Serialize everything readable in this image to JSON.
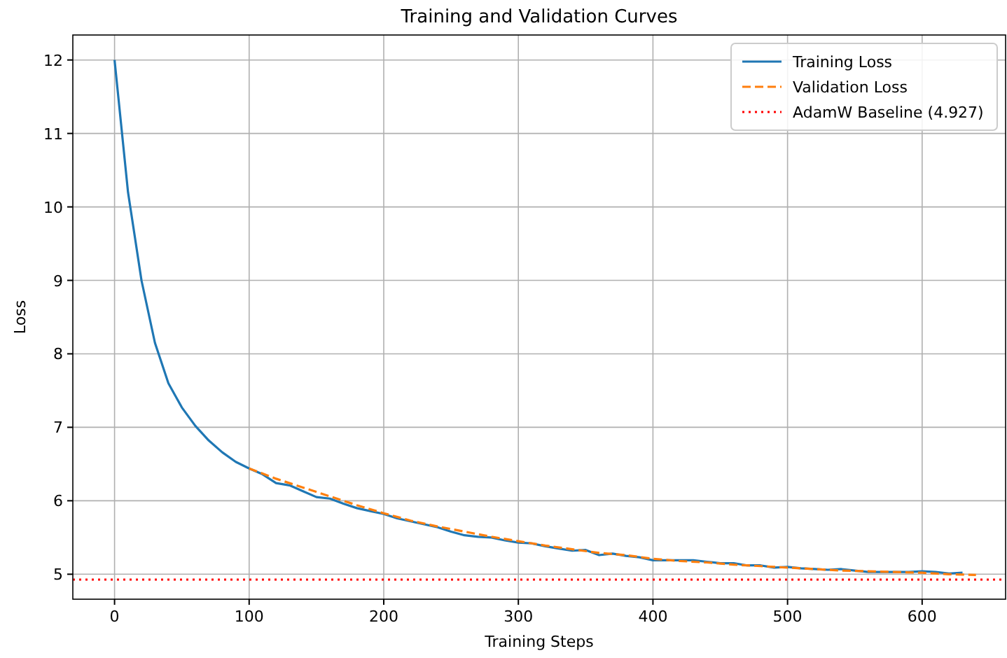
{
  "chart_data": {
    "type": "line",
    "title": "Training and Validation Curves",
    "xlabel": "Training Steps",
    "ylabel": "Loss",
    "xlim": [
      -31,
      662
    ],
    "ylim": [
      4.66,
      12.34
    ],
    "xticks": [
      0,
      100,
      200,
      300,
      400,
      500,
      600
    ],
    "yticks": [
      5,
      6,
      7,
      8,
      9,
      10,
      11,
      12
    ],
    "grid": true,
    "legend": "top right",
    "series": [
      {
        "name": "Training Loss",
        "color": "#1f77b4",
        "line_style": "solid",
        "x": [
          0,
          10,
          20,
          30,
          40,
          50,
          60,
          70,
          80,
          90,
          100,
          110,
          120,
          130,
          140,
          150,
          160,
          170,
          180,
          190,
          200,
          210,
          220,
          230,
          240,
          250,
          260,
          270,
          280,
          290,
          300,
          310,
          320,
          330,
          340,
          350,
          360,
          370,
          380,
          390,
          400,
          410,
          420,
          430,
          440,
          450,
          460,
          470,
          480,
          490,
          500,
          510,
          520,
          530,
          540,
          550,
          560,
          570,
          580,
          590,
          600,
          610,
          620,
          630
        ],
        "values": [
          12.0,
          10.2,
          9.0,
          8.15,
          7.6,
          7.27,
          7.02,
          6.82,
          6.66,
          6.53,
          6.44,
          6.36,
          6.24,
          6.21,
          6.13,
          6.05,
          6.03,
          5.96,
          5.9,
          5.86,
          5.82,
          5.76,
          5.72,
          5.68,
          5.64,
          5.58,
          5.53,
          5.51,
          5.5,
          5.46,
          5.43,
          5.42,
          5.38,
          5.35,
          5.32,
          5.33,
          5.26,
          5.28,
          5.25,
          5.23,
          5.19,
          5.19,
          5.19,
          5.19,
          5.17,
          5.15,
          5.15,
          5.12,
          5.12,
          5.09,
          5.1,
          5.08,
          5.07,
          5.06,
          5.07,
          5.05,
          5.03,
          5.03,
          5.03,
          5.03,
          5.04,
          5.03,
          5.01,
          5.02
        ]
      },
      {
        "name": "Validation Loss",
        "color": "#ff7f0e",
        "line_style": "dashed",
        "x": [
          100,
          120,
          140,
          160,
          180,
          200,
          220,
          240,
          260,
          280,
          300,
          320,
          340,
          360,
          380,
          400,
          420,
          440,
          460,
          480,
          500,
          520,
          540,
          560,
          580,
          600,
          620,
          640
        ],
        "values": [
          6.44,
          6.3,
          6.18,
          6.06,
          5.94,
          5.83,
          5.73,
          5.65,
          5.58,
          5.51,
          5.45,
          5.39,
          5.34,
          5.29,
          5.26,
          5.21,
          5.18,
          5.16,
          5.13,
          5.11,
          5.09,
          5.07,
          5.05,
          5.04,
          5.03,
          5.02,
          5.0,
          4.99
        ]
      }
    ],
    "ref_lines": [
      {
        "axis": "y",
        "value": 4.927,
        "label": "AdamW Baseline (4.927)",
        "color": "#ff0000",
        "line_style": "dotted"
      }
    ]
  }
}
